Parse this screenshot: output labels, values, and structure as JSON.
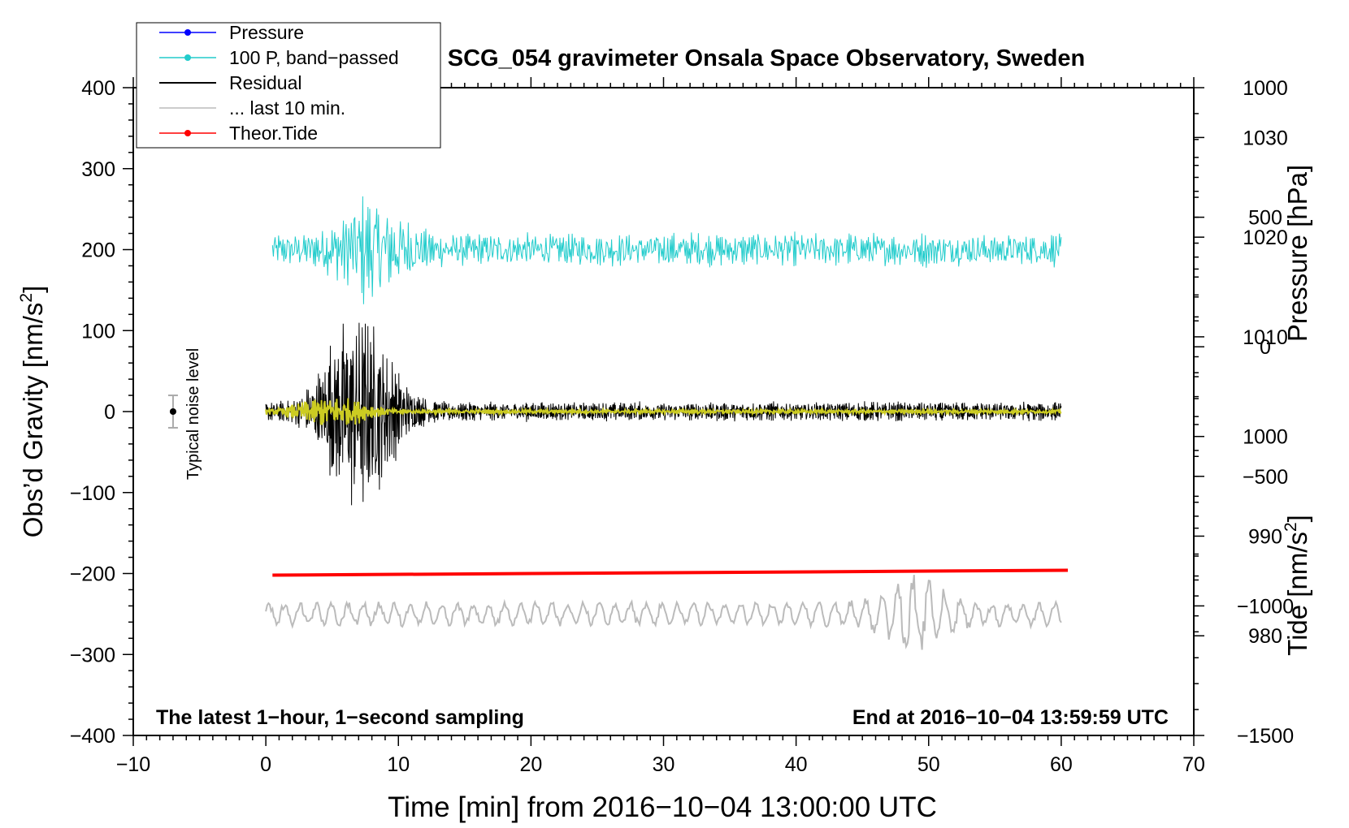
{
  "chart_data": {
    "type": "line",
    "title": "SCG_054 gravimeter Onsala Space Observatory, Sweden",
    "xlabel": "Time [min] from 2016−10−04 13:00:00 UTC",
    "ylabel_left": "Obs’d Gravity [nm/s",
    "ylabel_pressure": "Pressure [hPa]",
    "ylabel_tide": "Tide [nm/s",
    "ylabel_sup": "2",
    "ylabel_close": "]",
    "annotation_left": "The latest 1−hour, 1−second sampling",
    "annotation_right": "End at 2016−10−04 13:59:59 UTC",
    "noise_label": "Typical noise level",
    "xlim": [
      -10,
      70
    ],
    "ylim": [
      -400,
      400
    ],
    "pressure_ylim": [
      970,
      1035
    ],
    "tide_ylim": [
      -1500,
      1000
    ],
    "xticks": [
      -10,
      0,
      10,
      20,
      30,
      40,
      50,
      60,
      70
    ],
    "xtick_labels": [
      "−10",
      "0",
      "10",
      "20",
      "30",
      "40",
      "50",
      "60",
      "70"
    ],
    "yticks": [
      400,
      300,
      200,
      100,
      0,
      -100,
      -200,
      -300,
      -400
    ],
    "ytick_labels": [
      "400",
      "300",
      "200",
      "100",
      "0",
      "−100",
      "−200",
      "−300",
      "−400"
    ],
    "pressure_ticks": [
      1030,
      1020,
      1010,
      1000,
      990,
      980
    ],
    "pressure_tick_labels": [
      "1030",
      "1020",
      "1010",
      "1000",
      "990",
      "980"
    ],
    "tide_ticks": [
      1000,
      500,
      0,
      -500,
      -1000,
      -1500
    ],
    "tide_tick_labels": [
      "1000",
      "500",
      "0",
      "−500",
      "−1000",
      "−1500"
    ],
    "legend": [
      {
        "label": "Pressure",
        "color": "#0000ff"
      },
      {
        "label": "100 P, band−passed",
        "color": "#22cccc"
      },
      {
        "label": "Residual",
        "color": "#000000"
      },
      {
        "label": "... last 10 min.",
        "color": "#bbbbbb"
      },
      {
        "label": "Theor.Tide",
        "color": "#ff0000"
      }
    ],
    "noise_bar": {
      "x": -7,
      "y": 0,
      "half_range": 20
    },
    "series": [
      {
        "name": "100 P, band-passed",
        "color": "#22cccc",
        "x_range": [
          0.5,
          60
        ],
        "center": 200,
        "amplitude": 25,
        "burst_center": 8,
        "burst_amplitude": 60
      },
      {
        "name": "Residual",
        "color": "#000000",
        "x_range": [
          0,
          60
        ],
        "center": 0,
        "amplitude": 14,
        "burst_center": 7,
        "burst_amplitude": 145
      },
      {
        "name": "Yellow overlay",
        "color": "#cccc22",
        "x_range": [
          0,
          60
        ],
        "center": 0,
        "amplitude": 3,
        "burst_center": 5,
        "burst_amplitude": 22
      },
      {
        "name": "... last 10 min.",
        "color": "#bbbbbb",
        "x_range": [
          0,
          60
        ],
        "center": -250,
        "amplitude": 15,
        "burst_center": 49,
        "burst_amplitude": 35
      },
      {
        "name": "Theor.Tide",
        "color": "#ff0000",
        "x": [
          0.5,
          60.5
        ],
        "y": [
          -202,
          -196
        ]
      }
    ]
  }
}
